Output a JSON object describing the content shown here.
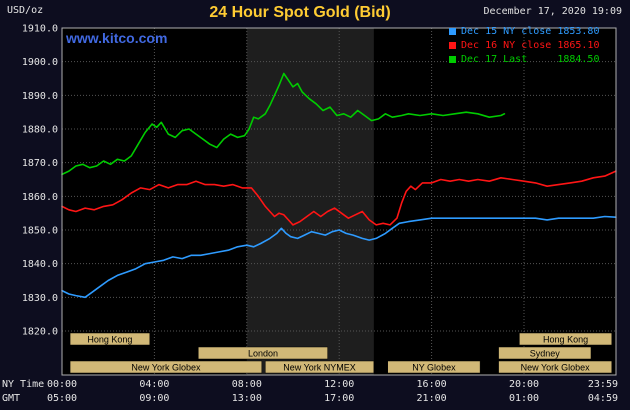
{
  "page": {
    "unit_label": "USD/oz",
    "title": "24 Hour Spot Gold (Bid)",
    "datetime": "December 17, 2020 19:09",
    "watermark": "www.kitco.com"
  },
  "colors": {
    "background": "#0d0d1f",
    "plot_background": "#000000",
    "highlight_band": "#1e1e1e",
    "grid": "#555555",
    "border": "#b0b0b0",
    "tick_text": "#e6e6e6",
    "session_fill": "#d1b877",
    "session_text": "#000000",
    "title_gold": "#ffcc33",
    "watermark_blue": "#4169e1"
  },
  "chart_data": {
    "type": "line",
    "title": "24 Hour Spot Gold (Bid)",
    "ylabel": "USD/oz",
    "ylim": [
      1820,
      1910
    ],
    "y_ticks": [
      1910,
      1900,
      1890,
      1880,
      1870,
      1860,
      1850,
      1840,
      1830,
      1820
    ],
    "x_axis_row_labels": {
      "ny": "NY Time",
      "gmt": "GMT"
    },
    "ny_time_ticks": [
      {
        "hour": 0,
        "label": "00:00"
      },
      {
        "hour": 4,
        "label": "04:00"
      },
      {
        "hour": 8,
        "label": "08:00"
      },
      {
        "hour": 12,
        "label": "12:00"
      },
      {
        "hour": 16,
        "label": "16:00"
      },
      {
        "hour": 20,
        "label": "20:00"
      },
      {
        "hour": 23.983,
        "label": "23:59"
      }
    ],
    "gmt_ticks": [
      {
        "hour": 0,
        "label": "05:00"
      },
      {
        "hour": 4,
        "label": "09:00"
      },
      {
        "hour": 8,
        "label": "13:00"
      },
      {
        "hour": 12,
        "label": "17:00"
      },
      {
        "hour": 16,
        "label": "21:00"
      },
      {
        "hour": 20,
        "label": "01:00"
      },
      {
        "hour": 23.983,
        "label": "04:59"
      }
    ],
    "highlight_band_hours": [
      8.0,
      13.5
    ],
    "legend": [
      {
        "name": "Dec 15 NY close",
        "value": "1853.80",
        "color": "#2e9bff"
      },
      {
        "name": "Dec 16 NY close",
        "value": "1865.10",
        "color": "#ff1515"
      },
      {
        "name": "Dec 17 Last",
        "value": "1884.50",
        "color": "#00cc00"
      }
    ],
    "sessions": [
      {
        "row": 0,
        "label": "Hong Kong",
        "start_hour": 0.35,
        "end_hour": 3.8
      },
      {
        "row": 0,
        "label": "Hong Kong",
        "start_hour": 19.8,
        "end_hour": 23.8
      },
      {
        "row": 1,
        "label": "London",
        "start_hour": 5.9,
        "end_hour": 11.5
      },
      {
        "row": 1,
        "label": "Sydney",
        "start_hour": 18.9,
        "end_hour": 22.9
      },
      {
        "row": 2,
        "label": "New York Globex",
        "start_hour": 0.35,
        "end_hour": 8.65
      },
      {
        "row": 2,
        "label": "New York NYMEX",
        "start_hour": 8.8,
        "end_hour": 13.5
      },
      {
        "row": 2,
        "label": "NY Globex",
        "start_hour": 14.1,
        "end_hour": 18.1
      },
      {
        "row": 2,
        "label": "New York Globex",
        "start_hour": 18.9,
        "end_hour": 23.8
      }
    ],
    "series": [
      {
        "name": "Dec 15",
        "color": "#2e9bff",
        "points": [
          [
            0,
            1832
          ],
          [
            0.3,
            1831
          ],
          [
            0.6,
            1830.5
          ],
          [
            1,
            1830
          ],
          [
            1.3,
            1831.5
          ],
          [
            1.6,
            1833
          ],
          [
            2,
            1835
          ],
          [
            2.4,
            1836.5
          ],
          [
            2.8,
            1837.5
          ],
          [
            3.2,
            1838.5
          ],
          [
            3.6,
            1840
          ],
          [
            4,
            1840.5
          ],
          [
            4.4,
            1841
          ],
          [
            4.8,
            1842
          ],
          [
            5.2,
            1841.5
          ],
          [
            5.6,
            1842.5
          ],
          [
            6,
            1842.5
          ],
          [
            6.4,
            1843
          ],
          [
            6.8,
            1843.5
          ],
          [
            7.2,
            1844
          ],
          [
            7.6,
            1845
          ],
          [
            8,
            1845.5
          ],
          [
            8.3,
            1845
          ],
          [
            8.6,
            1846
          ],
          [
            9,
            1847.5
          ],
          [
            9.3,
            1849
          ],
          [
            9.5,
            1850.5
          ],
          [
            9.7,
            1849
          ],
          [
            9.9,
            1848
          ],
          [
            10.2,
            1847.5
          ],
          [
            10.5,
            1848.5
          ],
          [
            10.8,
            1849.5
          ],
          [
            11.1,
            1849
          ],
          [
            11.4,
            1848.5
          ],
          [
            11.7,
            1849.5
          ],
          [
            12,
            1850
          ],
          [
            12.3,
            1849
          ],
          [
            12.6,
            1848.5
          ],
          [
            13,
            1847.5
          ],
          [
            13.3,
            1847
          ],
          [
            13.6,
            1847.5
          ],
          [
            14,
            1849
          ],
          [
            14.3,
            1850.5
          ],
          [
            14.6,
            1852
          ],
          [
            15,
            1852.5
          ],
          [
            15.5,
            1853
          ],
          [
            16,
            1853.5
          ],
          [
            17,
            1853.5
          ],
          [
            18,
            1853.5
          ],
          [
            19,
            1853.5
          ],
          [
            20,
            1853.5
          ],
          [
            20.5,
            1853.5
          ],
          [
            21,
            1853
          ],
          [
            21.5,
            1853.5
          ],
          [
            22,
            1853.5
          ],
          [
            23,
            1853.5
          ],
          [
            23.5,
            1854
          ],
          [
            23.98,
            1853.8
          ]
        ]
      },
      {
        "name": "Dec 16",
        "color": "#ff1515",
        "points": [
          [
            0,
            1857
          ],
          [
            0.3,
            1856
          ],
          [
            0.6,
            1855.5
          ],
          [
            1,
            1856.5
          ],
          [
            1.4,
            1856
          ],
          [
            1.8,
            1857
          ],
          [
            2.2,
            1857.5
          ],
          [
            2.6,
            1859
          ],
          [
            3,
            1861
          ],
          [
            3.4,
            1862.5
          ],
          [
            3.8,
            1862
          ],
          [
            4.2,
            1863.5
          ],
          [
            4.6,
            1862.5
          ],
          [
            5,
            1863.5
          ],
          [
            5.4,
            1863.5
          ],
          [
            5.8,
            1864.5
          ],
          [
            6.2,
            1863.5
          ],
          [
            6.6,
            1863.5
          ],
          [
            7,
            1863
          ],
          [
            7.4,
            1863.5
          ],
          [
            7.8,
            1862.5
          ],
          [
            8.2,
            1862.5
          ],
          [
            8.5,
            1860
          ],
          [
            8.8,
            1857
          ],
          [
            9,
            1855.5
          ],
          [
            9.2,
            1854
          ],
          [
            9.4,
            1855
          ],
          [
            9.6,
            1854.5
          ],
          [
            9.8,
            1853
          ],
          [
            10,
            1851.5
          ],
          [
            10.3,
            1852.5
          ],
          [
            10.6,
            1854
          ],
          [
            10.9,
            1855.5
          ],
          [
            11.2,
            1854
          ],
          [
            11.5,
            1855.5
          ],
          [
            11.8,
            1856.5
          ],
          [
            12.1,
            1855
          ],
          [
            12.4,
            1853.5
          ],
          [
            12.7,
            1854.5
          ],
          [
            13,
            1855.5
          ],
          [
            13.3,
            1853
          ],
          [
            13.6,
            1851.5
          ],
          [
            13.9,
            1852
          ],
          [
            14.2,
            1851.5
          ],
          [
            14.5,
            1853.5
          ],
          [
            14.7,
            1858
          ],
          [
            14.9,
            1861.5
          ],
          [
            15.1,
            1863
          ],
          [
            15.3,
            1862
          ],
          [
            15.6,
            1864
          ],
          [
            16,
            1864
          ],
          [
            16.4,
            1865
          ],
          [
            16.8,
            1864.5
          ],
          [
            17.2,
            1865
          ],
          [
            17.6,
            1864.5
          ],
          [
            18,
            1865
          ],
          [
            18.5,
            1864.5
          ],
          [
            19,
            1865.5
          ],
          [
            19.5,
            1865
          ],
          [
            20,
            1864.5
          ],
          [
            20.5,
            1864
          ],
          [
            21,
            1863
          ],
          [
            21.5,
            1863.5
          ],
          [
            22,
            1864
          ],
          [
            22.5,
            1864.5
          ],
          [
            23,
            1865.5
          ],
          [
            23.5,
            1866
          ],
          [
            23.98,
            1867.5
          ]
        ]
      },
      {
        "name": "Dec 17",
        "color": "#00cc00",
        "points": [
          [
            0,
            1866.5
          ],
          [
            0.3,
            1867.5
          ],
          [
            0.6,
            1869
          ],
          [
            0.9,
            1869.5
          ],
          [
            1.2,
            1868.5
          ],
          [
            1.5,
            1869
          ],
          [
            1.8,
            1870.5
          ],
          [
            2.1,
            1869.5
          ],
          [
            2.4,
            1871
          ],
          [
            2.7,
            1870.5
          ],
          [
            3,
            1872
          ],
          [
            3.3,
            1875.5
          ],
          [
            3.6,
            1879
          ],
          [
            3.9,
            1881.5
          ],
          [
            4.1,
            1880.5
          ],
          [
            4.3,
            1882
          ],
          [
            4.6,
            1878.5
          ],
          [
            4.9,
            1877.5
          ],
          [
            5.2,
            1879.5
          ],
          [
            5.5,
            1880
          ],
          [
            5.8,
            1878.5
          ],
          [
            6.1,
            1877
          ],
          [
            6.4,
            1875.5
          ],
          [
            6.7,
            1874.5
          ],
          [
            7,
            1877
          ],
          [
            7.3,
            1878.5
          ],
          [
            7.6,
            1877.5
          ],
          [
            7.9,
            1878
          ],
          [
            8.1,
            1880
          ],
          [
            8.3,
            1883.5
          ],
          [
            8.5,
            1883
          ],
          [
            8.8,
            1884.5
          ],
          [
            9,
            1887
          ],
          [
            9.2,
            1890
          ],
          [
            9.4,
            1893
          ],
          [
            9.6,
            1896.5
          ],
          [
            9.8,
            1894.5
          ],
          [
            10,
            1892.5
          ],
          [
            10.2,
            1893.5
          ],
          [
            10.4,
            1891
          ],
          [
            10.7,
            1889
          ],
          [
            11,
            1887.5
          ],
          [
            11.3,
            1885.5
          ],
          [
            11.6,
            1886.5
          ],
          [
            11.9,
            1884
          ],
          [
            12.2,
            1884.5
          ],
          [
            12.5,
            1883.5
          ],
          [
            12.8,
            1885.5
          ],
          [
            13.1,
            1884
          ],
          [
            13.4,
            1882.5
          ],
          [
            13.7,
            1883
          ],
          [
            14,
            1884.5
          ],
          [
            14.3,
            1883.5
          ],
          [
            14.7,
            1884
          ],
          [
            15,
            1884.5
          ],
          [
            15.5,
            1884
          ],
          [
            16,
            1884.5
          ],
          [
            16.5,
            1884
          ],
          [
            17,
            1884.5
          ],
          [
            17.5,
            1885
          ],
          [
            18,
            1884.5
          ],
          [
            18.5,
            1883.5
          ],
          [
            19,
            1884
          ],
          [
            19.15,
            1884.5
          ]
        ]
      }
    ]
  }
}
